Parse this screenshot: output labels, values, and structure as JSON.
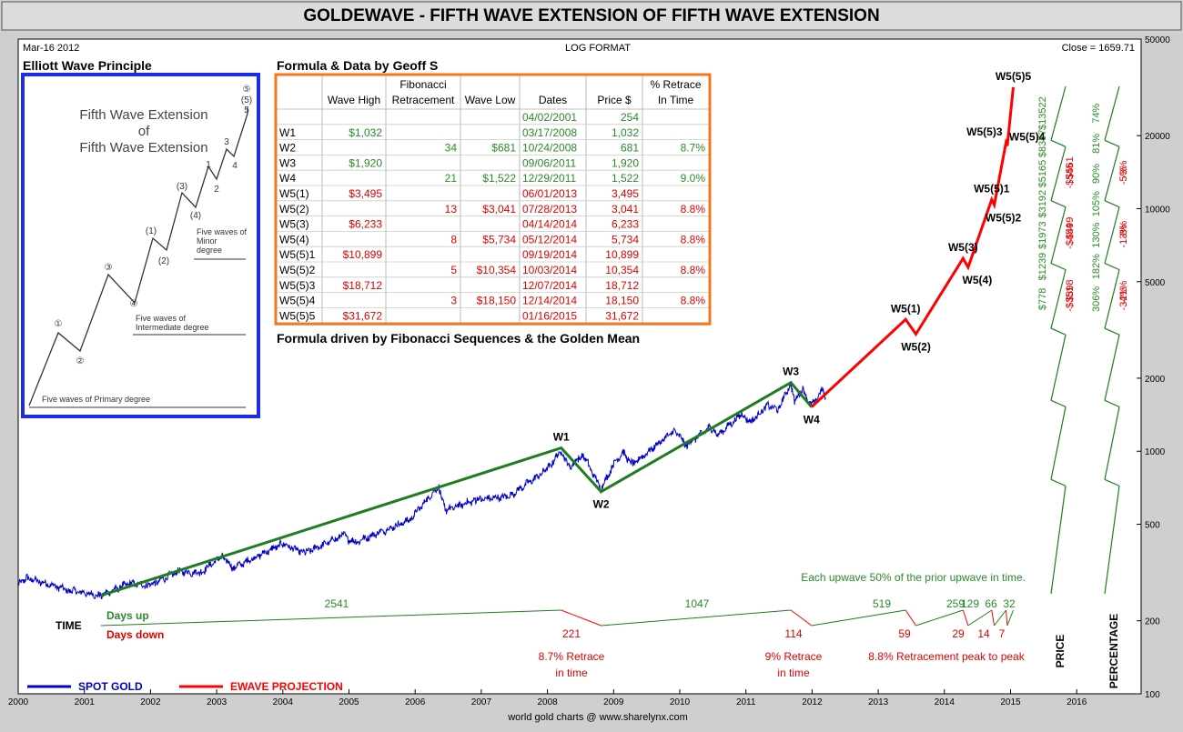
{
  "title": "GOLDEWAVE - FIFTH WAVE EXTENSION OF FIFTH WAVE EXTENSION",
  "header_left": "Mar-16  2012",
  "header_center": "LOG FORMAT",
  "header_right": "Close = 1659.71",
  "footer_credit": "world gold charts @ www.sharelynx.com",
  "colors": {
    "spot": "#0000cc",
    "projection": "#ff0000",
    "wave_line": "#1e7d1e",
    "inset_border": "#1a2ee8",
    "table_border": "#f07820",
    "up_text": "#2a8a2a",
    "down_text": "#e00000",
    "background": "#ffffff",
    "frame": "#cfcfcf"
  },
  "inset": {
    "heading": "Elliott Wave Principle",
    "diagram_title_lines": [
      "Fifth Wave Extension",
      "of",
      "Fifth Wave Extension"
    ],
    "wave_labels": [
      "①",
      "②",
      "③",
      "④",
      "(1)",
      "(2)",
      "(3)",
      "(4)",
      "1",
      "2",
      "3",
      "4",
      "5",
      "(5)",
      "⑤"
    ],
    "notes": {
      "minor": [
        "Five waves of",
        "Minor",
        "degree"
      ],
      "intermediate": [
        "Five waves of",
        "Intermediate degree"
      ],
      "primary": "Five waves of Primary degree"
    }
  },
  "table": {
    "heading": "Formula & Data by Geoff S",
    "footer": "Formula driven by Fibonacci Sequences & the Golden Mean",
    "columns": [
      "",
      "Wave High",
      "Fibonacci Retracement",
      "Wave Low",
      "Dates",
      "Price $",
      "% Retrace In Time"
    ],
    "header_lines": [
      [
        "",
        ""
      ],
      [
        "",
        "Wave High"
      ],
      [
        "Fibonacci",
        "Retracement"
      ],
      [
        "",
        "Wave Low"
      ],
      [
        "",
        "Dates"
      ],
      [
        "",
        "Price $"
      ],
      [
        "% Retrace",
        "In Time"
      ]
    ],
    "rows": [
      {
        "wave": "",
        "high": "",
        "fib": "",
        "low": "",
        "date": "04/02/2001",
        "price": "254",
        "pct": "",
        "color": "green"
      },
      {
        "wave": "W1",
        "high": "$1,032",
        "fib": "",
        "low": "",
        "date": "03/17/2008",
        "price": "1,032",
        "pct": "",
        "color": "green"
      },
      {
        "wave": "W2",
        "high": "",
        "fib": "34",
        "low": "$681",
        "date": "10/24/2008",
        "price": "681",
        "pct": "8.7%",
        "color": "green"
      },
      {
        "wave": "W3",
        "high": "$1,920",
        "fib": "",
        "low": "",
        "date": "09/06/2011",
        "price": "1,920",
        "pct": "",
        "color": "green"
      },
      {
        "wave": "W4",
        "high": "",
        "fib": "21",
        "low": "$1,522",
        "date": "12/29/2011",
        "price": "1,522",
        "pct": "9.0%",
        "color": "green"
      },
      {
        "wave": "W5(1)",
        "high": "$3,495",
        "fib": "",
        "low": "",
        "date": "06/01/2013",
        "price": "3,495",
        "pct": "",
        "color": "red"
      },
      {
        "wave": "W5(2)",
        "high": "",
        "fib": "13",
        "low": "$3,041",
        "date": "07/28/2013",
        "price": "3,041",
        "pct": "8.8%",
        "color": "red"
      },
      {
        "wave": "W5(3)",
        "high": "$6,233",
        "fib": "",
        "low": "",
        "date": "04/14/2014",
        "price": "6,233",
        "pct": "",
        "color": "red"
      },
      {
        "wave": "W5(4)",
        "high": "",
        "fib": "8",
        "low": "$5,734",
        "date": "05/12/2014",
        "price": "5,734",
        "pct": "8.8%",
        "color": "red"
      },
      {
        "wave": "W5(5)1",
        "high": "$10,899",
        "fib": "",
        "low": "",
        "date": "09/19/2014",
        "price": "10,899",
        "pct": "",
        "color": "red"
      },
      {
        "wave": "W5(5)2",
        "high": "",
        "fib": "5",
        "low": "$10,354",
        "date": "10/03/2014",
        "price": "10,354",
        "pct": "8.8%",
        "color": "red"
      },
      {
        "wave": "W5(5)3",
        "high": "$18,712",
        "fib": "",
        "low": "",
        "date": "12/07/2014",
        "price": "18,712",
        "pct": "",
        "color": "red"
      },
      {
        "wave": "W5(5)4",
        "high": "",
        "fib": "3",
        "low": "$18,150",
        "date": "12/14/2014",
        "price": "18,150",
        "pct": "8.8%",
        "color": "red"
      },
      {
        "wave": "W5(5)5",
        "high": "$31,672",
        "fib": "",
        "low": "",
        "date": "01/16/2015",
        "price": "31,672",
        "pct": "",
        "color": "red"
      }
    ]
  },
  "chart_data": {
    "type": "line",
    "y_scale": "log",
    "ylim": [
      100,
      50000
    ],
    "xlim": [
      "2000-01-01",
      "2017-01-01"
    ],
    "grid": false,
    "legend_position": "bottom-left",
    "legend": [
      {
        "label": "SPOT GOLD",
        "color": "#0000cc"
      },
      {
        "label": "EWAVE PROJECTION",
        "color": "#ff0000"
      }
    ],
    "x_ticks": [
      "2000",
      "2001",
      "2002",
      "2003",
      "2004",
      "2005",
      "2006",
      "2007",
      "2008",
      "2009",
      "2010",
      "2011",
      "2012",
      "2013",
      "2014",
      "2015",
      "2016"
    ],
    "y_ticks": [
      {
        "value": 50000,
        "label": "50000"
      },
      {
        "value": 20000,
        "label": "20000"
      },
      {
        "value": 10000,
        "label": "10000"
      },
      {
        "value": 5000,
        "label": "5000"
      },
      {
        "value": 2000,
        "label": "2000"
      },
      {
        "value": 1000,
        "label": "1000"
      },
      {
        "value": 500,
        "label": "500"
      },
      {
        "value": 200,
        "label": "200"
      },
      {
        "value": 100,
        "label": "100"
      }
    ],
    "spot_gold_anchors": [
      {
        "x": "2000-01-01",
        "y": 280
      },
      {
        "x": "2000-02-15",
        "y": 300
      },
      {
        "x": "2000-06-01",
        "y": 285
      },
      {
        "x": "2000-10-01",
        "y": 268
      },
      {
        "x": "2001-04-02",
        "y": 254
      },
      {
        "x": "2001-09-01",
        "y": 285
      },
      {
        "x": "2002-01-01",
        "y": 280
      },
      {
        "x": "2002-06-01",
        "y": 320
      },
      {
        "x": "2002-10-01",
        "y": 315
      },
      {
        "x": "2003-02-01",
        "y": 370
      },
      {
        "x": "2003-04-01",
        "y": 330
      },
      {
        "x": "2003-12-31",
        "y": 415
      },
      {
        "x": "2004-05-01",
        "y": 380
      },
      {
        "x": "2004-12-01",
        "y": 450
      },
      {
        "x": "2005-02-01",
        "y": 420
      },
      {
        "x": "2005-12-01",
        "y": 520
      },
      {
        "x": "2006-05-12",
        "y": 720
      },
      {
        "x": "2006-06-15",
        "y": 570
      },
      {
        "x": "2006-12-01",
        "y": 630
      },
      {
        "x": "2007-06-01",
        "y": 650
      },
      {
        "x": "2007-12-31",
        "y": 840
      },
      {
        "x": "2008-03-17",
        "y": 1010
      },
      {
        "x": "2008-05-01",
        "y": 860
      },
      {
        "x": "2008-07-15",
        "y": 970
      },
      {
        "x": "2008-10-24",
        "y": 700
      },
      {
        "x": "2008-12-31",
        "y": 880
      },
      {
        "x": "2009-02-20",
        "y": 990
      },
      {
        "x": "2009-04-15",
        "y": 880
      },
      {
        "x": "2009-12-03",
        "y": 1220
      },
      {
        "x": "2010-02-05",
        "y": 1060
      },
      {
        "x": "2010-06-20",
        "y": 1260
      },
      {
        "x": "2010-07-28",
        "y": 1160
      },
      {
        "x": "2010-12-07",
        "y": 1420
      },
      {
        "x": "2011-01-28",
        "y": 1320
      },
      {
        "x": "2011-05-01",
        "y": 1550
      },
      {
        "x": "2011-06-28",
        "y": 1480
      },
      {
        "x": "2011-09-06",
        "y": 1920
      },
      {
        "x": "2011-09-26",
        "y": 1600
      },
      {
        "x": "2011-11-08",
        "y": 1800
      },
      {
        "x": "2011-12-29",
        "y": 1540
      },
      {
        "x": "2012-02-28",
        "y": 1790
      },
      {
        "x": "2012-03-16",
        "y": 1659.71
      }
    ],
    "wave_path": [
      {
        "x": "2001-04-02",
        "y": 254
      },
      {
        "x": "2008-03-17",
        "y": 1032
      },
      {
        "x": "2008-10-24",
        "y": 681
      },
      {
        "x": "2011-09-06",
        "y": 1920
      },
      {
        "x": "2011-12-29",
        "y": 1522
      }
    ],
    "projection_path": [
      {
        "x": "2011-12-29",
        "y": 1522
      },
      {
        "x": "2013-06-01",
        "y": 3495
      },
      {
        "x": "2013-07-28",
        "y": 3041
      },
      {
        "x": "2014-04-14",
        "y": 6233
      },
      {
        "x": "2014-05-12",
        "y": 5734
      },
      {
        "x": "2014-09-19",
        "y": 10899
      },
      {
        "x": "2014-10-03",
        "y": 10354
      },
      {
        "x": "2014-12-07",
        "y": 18712
      },
      {
        "x": "2014-12-14",
        "y": 18150
      },
      {
        "x": "2015-01-16",
        "y": 31672
      }
    ],
    "wave_labels": [
      {
        "label": "W1",
        "x": "2008-03-17",
        "y": 1032,
        "pos": "above"
      },
      {
        "label": "W2",
        "x": "2008-10-24",
        "y": 681,
        "pos": "below"
      },
      {
        "label": "W3",
        "x": "2011-09-06",
        "y": 1920,
        "pos": "above"
      },
      {
        "label": "W4",
        "x": "2011-12-29",
        "y": 1522,
        "pos": "below"
      },
      {
        "label": "W5(1)",
        "x": "2013-06-01",
        "y": 3495,
        "pos": "above"
      },
      {
        "label": "W5(2)",
        "x": "2013-07-28",
        "y": 3041,
        "pos": "below"
      },
      {
        "label": "W5(3)",
        "x": "2014-04-14",
        "y": 6233,
        "pos": "above"
      },
      {
        "label": "W5(4)",
        "x": "2014-05-12",
        "y": 5734,
        "pos": "below-right"
      },
      {
        "label": "W5(5)1",
        "x": "2014-09-19",
        "y": 10899,
        "pos": "above"
      },
      {
        "label": "W5(5)2",
        "x": "2014-10-03",
        "y": 10354,
        "pos": "below-right"
      },
      {
        "label": "W5(5)3",
        "x": "2014-12-07",
        "y": 18712,
        "pos": "above-left"
      },
      {
        "label": "W5(5)4",
        "x": "2014-12-14",
        "y": 18150,
        "pos": "right"
      },
      {
        "label": "W5(5)5",
        "x": "2015-01-16",
        "y": 31672,
        "pos": "above"
      }
    ],
    "time_panel": {
      "label": "TIME",
      "days_up_label": "Days up",
      "days_down_label": "Days down",
      "note": "Each upwave 50% of the prior upwave in time.",
      "up_counts": [
        "2541",
        "1047",
        "519",
        "259",
        "129",
        "66",
        "32"
      ],
      "down_counts": [
        "221",
        "114",
        "59",
        "29",
        "14",
        "7"
      ],
      "retrace_notes": [
        "8.7% Retrace\nin time",
        "9% Retrace\nin time",
        "8.8% Retracement peak to peak"
      ]
    },
    "price_panel": {
      "label": "PRICE",
      "gains": [
        "$13522",
        "$8357",
        "$5165",
        "$3192",
        "$1973",
        "$1239",
        "$778"
      ],
      "losses": [
        "-$561",
        "-$545",
        "-$499",
        "-$454",
        "-$398",
        "-$351"
      ]
    },
    "percentage_panel": {
      "label": "PERCENTAGE",
      "gains": [
        "74%",
        "81%",
        "90%",
        "105%",
        "130%",
        "182%",
        "306%"
      ],
      "losses": [
        "-3%",
        "-5%",
        "-8%",
        "-13%",
        "-21%",
        "-34%"
      ]
    }
  }
}
